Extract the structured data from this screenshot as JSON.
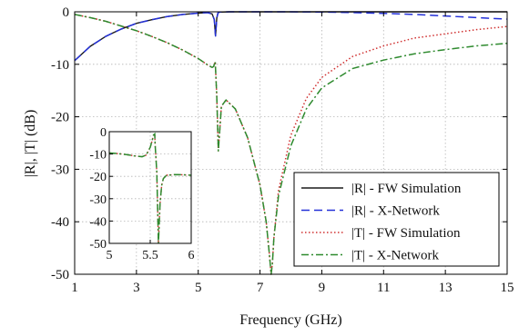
{
  "chart_data": {
    "type": "line",
    "title": "",
    "xlabel": "Frequency (GHz)",
    "ylabel": "|R|, |T| (dB)",
    "xlim": [
      1,
      15
    ],
    "ylim": [
      -50,
      0
    ],
    "xticks": [
      "1",
      "3",
      "5",
      "7",
      "9",
      "11",
      "13",
      "15"
    ],
    "yticks": [
      "0",
      "-10",
      "-20",
      "-30",
      "-40",
      "-50"
    ],
    "grid": true,
    "legend_position": "bottom-right",
    "legend": [
      {
        "label": "|R| - FW Simulation",
        "color": "#1a1a1a",
        "style": "solid"
      },
      {
        "label": "|R| - X-Network",
        "color": "#2330d8",
        "style": "dashed"
      },
      {
        "label": "|T| - FW Simulation",
        "color": "#d03030",
        "style": "dotted"
      },
      {
        "label": "|T| - X-Network",
        "color": "#2e8a2e",
        "style": "dashdot"
      }
    ],
    "series": [
      {
        "name": "|R| - FW Simulation",
        "x": [
          1,
          1.5,
          2,
          2.5,
          3,
          3.5,
          4,
          4.5,
          5,
          5.3,
          5.45,
          5.52,
          5.56,
          5.6,
          5.64,
          5.7,
          6,
          7,
          8,
          9,
          10,
          11,
          12,
          13,
          14,
          15
        ],
        "y": [
          -9.3,
          -6.6,
          -4.7,
          -3.3,
          -2.2,
          -1.5,
          -0.9,
          -0.5,
          -0.25,
          -0.15,
          -0.4,
          -1.5,
          -4.6,
          -1.2,
          -0.2,
          -0.05,
          0,
          0,
          0,
          0,
          0,
          0,
          0,
          0,
          0,
          0
        ]
      },
      {
        "name": "|R| - X-Network",
        "x": [
          1,
          1.5,
          2,
          2.5,
          3,
          3.5,
          4,
          4.5,
          5,
          5.3,
          5.45,
          5.52,
          5.56,
          5.6,
          5.64,
          5.7,
          6,
          7,
          8,
          9,
          10,
          11,
          12,
          13,
          14,
          15
        ],
        "y": [
          -9.3,
          -6.6,
          -4.7,
          -3.3,
          -2.2,
          -1.5,
          -0.9,
          -0.5,
          -0.25,
          -0.15,
          -0.4,
          -1.5,
          -4.6,
          -1.2,
          -0.2,
          -0.05,
          0,
          0,
          0,
          -0.05,
          -0.15,
          -0.3,
          -0.5,
          -0.8,
          -1.1,
          -1.4
        ]
      },
      {
        "name": "|T| - FW Simulation",
        "x": [
          1,
          1.5,
          2,
          2.5,
          3,
          3.5,
          4,
          4.5,
          5,
          5.3,
          5.45,
          5.5,
          5.55,
          5.6,
          5.65,
          5.75,
          5.9,
          6.2,
          6.6,
          7,
          7.2,
          7.3,
          7.36,
          7.4,
          7.45,
          7.6,
          8,
          8.5,
          9,
          10,
          11,
          12,
          13,
          14,
          15
        ],
        "y": [
          -0.5,
          -1.1,
          -1.8,
          -2.7,
          -3.6,
          -4.7,
          -5.9,
          -7.3,
          -8.9,
          -10.1,
          -10.6,
          -10.4,
          -9.5,
          -16,
          -26.5,
          -18,
          -16.8,
          -18.5,
          -24,
          -33,
          -40,
          -46,
          -50,
          -48,
          -43,
          -34,
          -23.5,
          -16.5,
          -12.5,
          -8.5,
          -6.5,
          -5,
          -4.2,
          -3.4,
          -2.8
        ]
      },
      {
        "name": "|T| - X-Network",
        "x": [
          1,
          1.5,
          2,
          2.5,
          3,
          3.5,
          4,
          4.5,
          5,
          5.3,
          5.45,
          5.5,
          5.55,
          5.6,
          5.65,
          5.75,
          5.9,
          6.2,
          6.6,
          7,
          7.2,
          7.3,
          7.36,
          7.4,
          7.45,
          7.6,
          8,
          8.5,
          9,
          10,
          11,
          12,
          13,
          14,
          15
        ],
        "y": [
          -0.5,
          -1.1,
          -1.8,
          -2.7,
          -3.6,
          -4.7,
          -5.9,
          -7.3,
          -8.9,
          -10.1,
          -10.6,
          -10.4,
          -9.5,
          -16,
          -26.5,
          -18,
          -16.8,
          -18.5,
          -24,
          -33,
          -40,
          -46,
          -50,
          -48,
          -43,
          -35,
          -25.5,
          -18.5,
          -14.5,
          -10.8,
          -9.2,
          -8.0,
          -7.2,
          -6.5,
          -6.0
        ]
      }
    ],
    "inset": {
      "xlim": [
        5,
        6
      ],
      "ylim": [
        -50,
        0
      ],
      "xticks": [
        "5",
        "5.5",
        "6"
      ],
      "yticks": [
        "0",
        "-10",
        "-20",
        "-30",
        "-40",
        "-50"
      ],
      "grid": true,
      "series": [
        {
          "name": "|T|",
          "x": [
            5,
            5.1,
            5.2,
            5.3,
            5.4,
            5.45,
            5.5,
            5.52,
            5.54,
            5.555,
            5.56,
            5.58,
            5.6,
            5.62,
            5.64,
            5.66,
            5.7,
            5.8,
            5.9,
            6
          ],
          "y": [
            -9.5,
            -9.8,
            -10.2,
            -10.8,
            -11.2,
            -10.5,
            -7,
            -4.5,
            -1.5,
            -1,
            -6,
            -18,
            -50,
            -32,
            -24,
            -21,
            -19.5,
            -19.2,
            -19.3,
            -19.5
          ]
        }
      ]
    }
  }
}
